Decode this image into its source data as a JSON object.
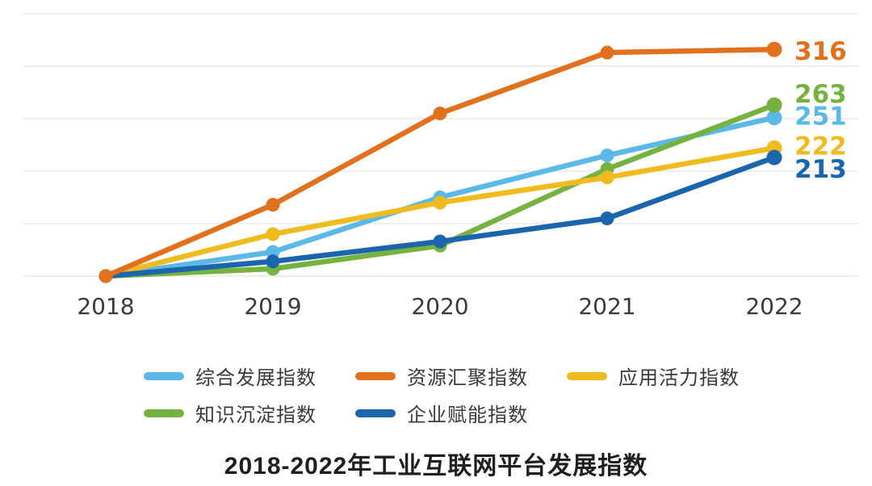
{
  "chart_data": {
    "type": "line",
    "title": "2018-2022年工业互联网平台发展指数",
    "x": [
      "2018",
      "2019",
      "2020",
      "2021",
      "2022"
    ],
    "xlabel": "",
    "ylabel": "",
    "ylim": [
      100,
      350
    ],
    "gridline_values": [
      100,
      150,
      200,
      250,
      300,
      350
    ],
    "grid": true,
    "legend_position": "bottom",
    "gridline_color": "#E3E3E3",
    "axis_label_color": "#3A3A3A",
    "background_color": "#FFFFFF",
    "series": [
      {
        "name": "综合发展指数",
        "color": "#5BB9E8",
        "values": [
          100,
          123,
          175,
          215,
          251
        ],
        "end_label": "251",
        "label_dy": -2
      },
      {
        "name": "资源汇聚指数",
        "color": "#E2711D",
        "values": [
          100,
          168,
          255,
          313,
          316
        ],
        "end_label": "316",
        "label_dy": 2
      },
      {
        "name": "应用活力指数",
        "color": "#F0BB1F",
        "values": [
          100,
          140,
          170,
          194,
          222
        ],
        "end_label": "222",
        "label_dy": -3
      },
      {
        "name": "知识沉淀指数",
        "color": "#76B23F",
        "values": [
          100,
          107,
          129,
          202,
          263
        ],
        "end_label": "263",
        "label_dy": -14
      },
      {
        "name": "企业赋能指数",
        "color": "#1A65AC",
        "values": [
          100,
          114,
          133,
          155,
          213
        ],
        "end_label": "213",
        "label_dy": 14
      }
    ],
    "draw_order": [
      0,
      3,
      2,
      4,
      1
    ]
  }
}
